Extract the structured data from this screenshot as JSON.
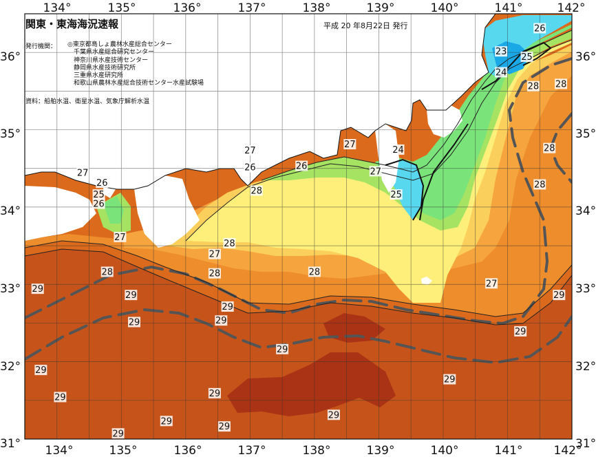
{
  "header": {
    "title": "関東・東海海況速報",
    "date": "平成 20 年8月22日 発行"
  },
  "agencies": {
    "label": "発行機関：",
    "items": [
      "◎東京都島しょ農林水産総合センター",
      "千葉県水産総合研究センター",
      "神奈川県水産技術センター",
      "静岡県水産技術研究所",
      "三重県水産研究所",
      "和歌山県農林水産総合技術センター水産試験場"
    ]
  },
  "sources": "資料：船舶水温、衛星水温、気象庁解析水温",
  "axes": {
    "lon_labels": [
      "134°",
      "135°",
      "136°",
      "137°",
      "138°",
      "139°",
      "140°",
      "141°",
      "142°"
    ],
    "lat_labels": [
      "36°",
      "35°",
      "34°",
      "33°",
      "32°",
      "31°"
    ]
  },
  "isotherm_labels": [
    {
      "text": "26",
      "lon": 141.5,
      "lat": 36.3
    },
    {
      "text": "23",
      "lon": 140.9,
      "lat": 36.0
    },
    {
      "text": "25",
      "lon": 141.3,
      "lat": 35.93
    },
    {
      "text": "24",
      "lon": 140.9,
      "lat": 35.73
    },
    {
      "text": "28",
      "lon": 141.4,
      "lat": 35.55
    },
    {
      "text": "28",
      "lon": 141.83,
      "lat": 35.58
    },
    {
      "text": "28",
      "lon": 141.65,
      "lat": 34.75
    },
    {
      "text": "28",
      "lon": 141.5,
      "lat": 34.28
    },
    {
      "text": "29",
      "lon": 141.8,
      "lat": 32.85
    },
    {
      "text": "29",
      "lon": 141.2,
      "lat": 32.38
    },
    {
      "text": "27",
      "lon": 140.75,
      "lat": 33.0
    },
    {
      "text": "24",
      "lon": 139.3,
      "lat": 34.73
    },
    {
      "text": "25",
      "lon": 139.27,
      "lat": 34.15
    },
    {
      "text": "27",
      "lon": 138.95,
      "lat": 34.45
    },
    {
      "text": "27",
      "lon": 138.55,
      "lat": 34.8
    },
    {
      "text": "26",
      "lon": 137.8,
      "lat": 34.52
    },
    {
      "text": "27",
      "lon": 137.0,
      "lat": 34.72
    },
    {
      "text": "26",
      "lon": 137.0,
      "lat": 34.5
    },
    {
      "text": "28",
      "lon": 137.1,
      "lat": 34.2
    },
    {
      "text": "26",
      "lon": 134.7,
      "lat": 34.3
    },
    {
      "text": "25",
      "lon": 134.65,
      "lat": 34.15
    },
    {
      "text": "26",
      "lon": 134.65,
      "lat": 34.03
    },
    {
      "text": "27",
      "lon": 134.4,
      "lat": 34.43
    },
    {
      "text": "27",
      "lon": 134.98,
      "lat": 33.6
    },
    {
      "text": "28",
      "lon": 136.68,
      "lat": 33.52
    },
    {
      "text": "27",
      "lon": 136.45,
      "lat": 33.38
    },
    {
      "text": "28",
      "lon": 134.78,
      "lat": 33.15
    },
    {
      "text": "28",
      "lon": 136.45,
      "lat": 33.13
    },
    {
      "text": "28",
      "lon": 138.0,
      "lat": 33.15
    },
    {
      "text": "29",
      "lon": 133.7,
      "lat": 32.93
    },
    {
      "text": "29",
      "lon": 135.15,
      "lat": 32.85
    },
    {
      "text": "29",
      "lon": 136.65,
      "lat": 32.7
    },
    {
      "text": "29",
      "lon": 135.2,
      "lat": 32.5
    },
    {
      "text": "29",
      "lon": 136.55,
      "lat": 32.52
    },
    {
      "text": "29",
      "lon": 137.5,
      "lat": 32.15
    },
    {
      "text": "29",
      "lon": 133.75,
      "lat": 31.88
    },
    {
      "text": "29",
      "lon": 140.1,
      "lat": 31.76
    },
    {
      "text": "29",
      "lon": 134.05,
      "lat": 31.53
    },
    {
      "text": "29",
      "lon": 136.45,
      "lat": 31.58
    },
    {
      "text": "29",
      "lon": 138.3,
      "lat": 31.3
    },
    {
      "text": "29",
      "lon": 135.7,
      "lat": 31.22
    },
    {
      "text": "29",
      "lon": 136.6,
      "lat": 31.15
    },
    {
      "text": "29",
      "lon": 134.95,
      "lat": 31.06
    }
  ],
  "colors": {
    "t23": "#1aa8e6",
    "t24": "#58d8ef",
    "t25": "#7ae37a",
    "t26": "#a6e363",
    "t27": "#fdef7a",
    "t27_5": "#fbcf5c",
    "t28": "#f5a43e",
    "t28_5": "#ee8d2c",
    "t29": "#db6a1c",
    "t29_5": "#c6541a",
    "t30": "#a93314",
    "current": "#555555",
    "land": "#ffffff"
  }
}
